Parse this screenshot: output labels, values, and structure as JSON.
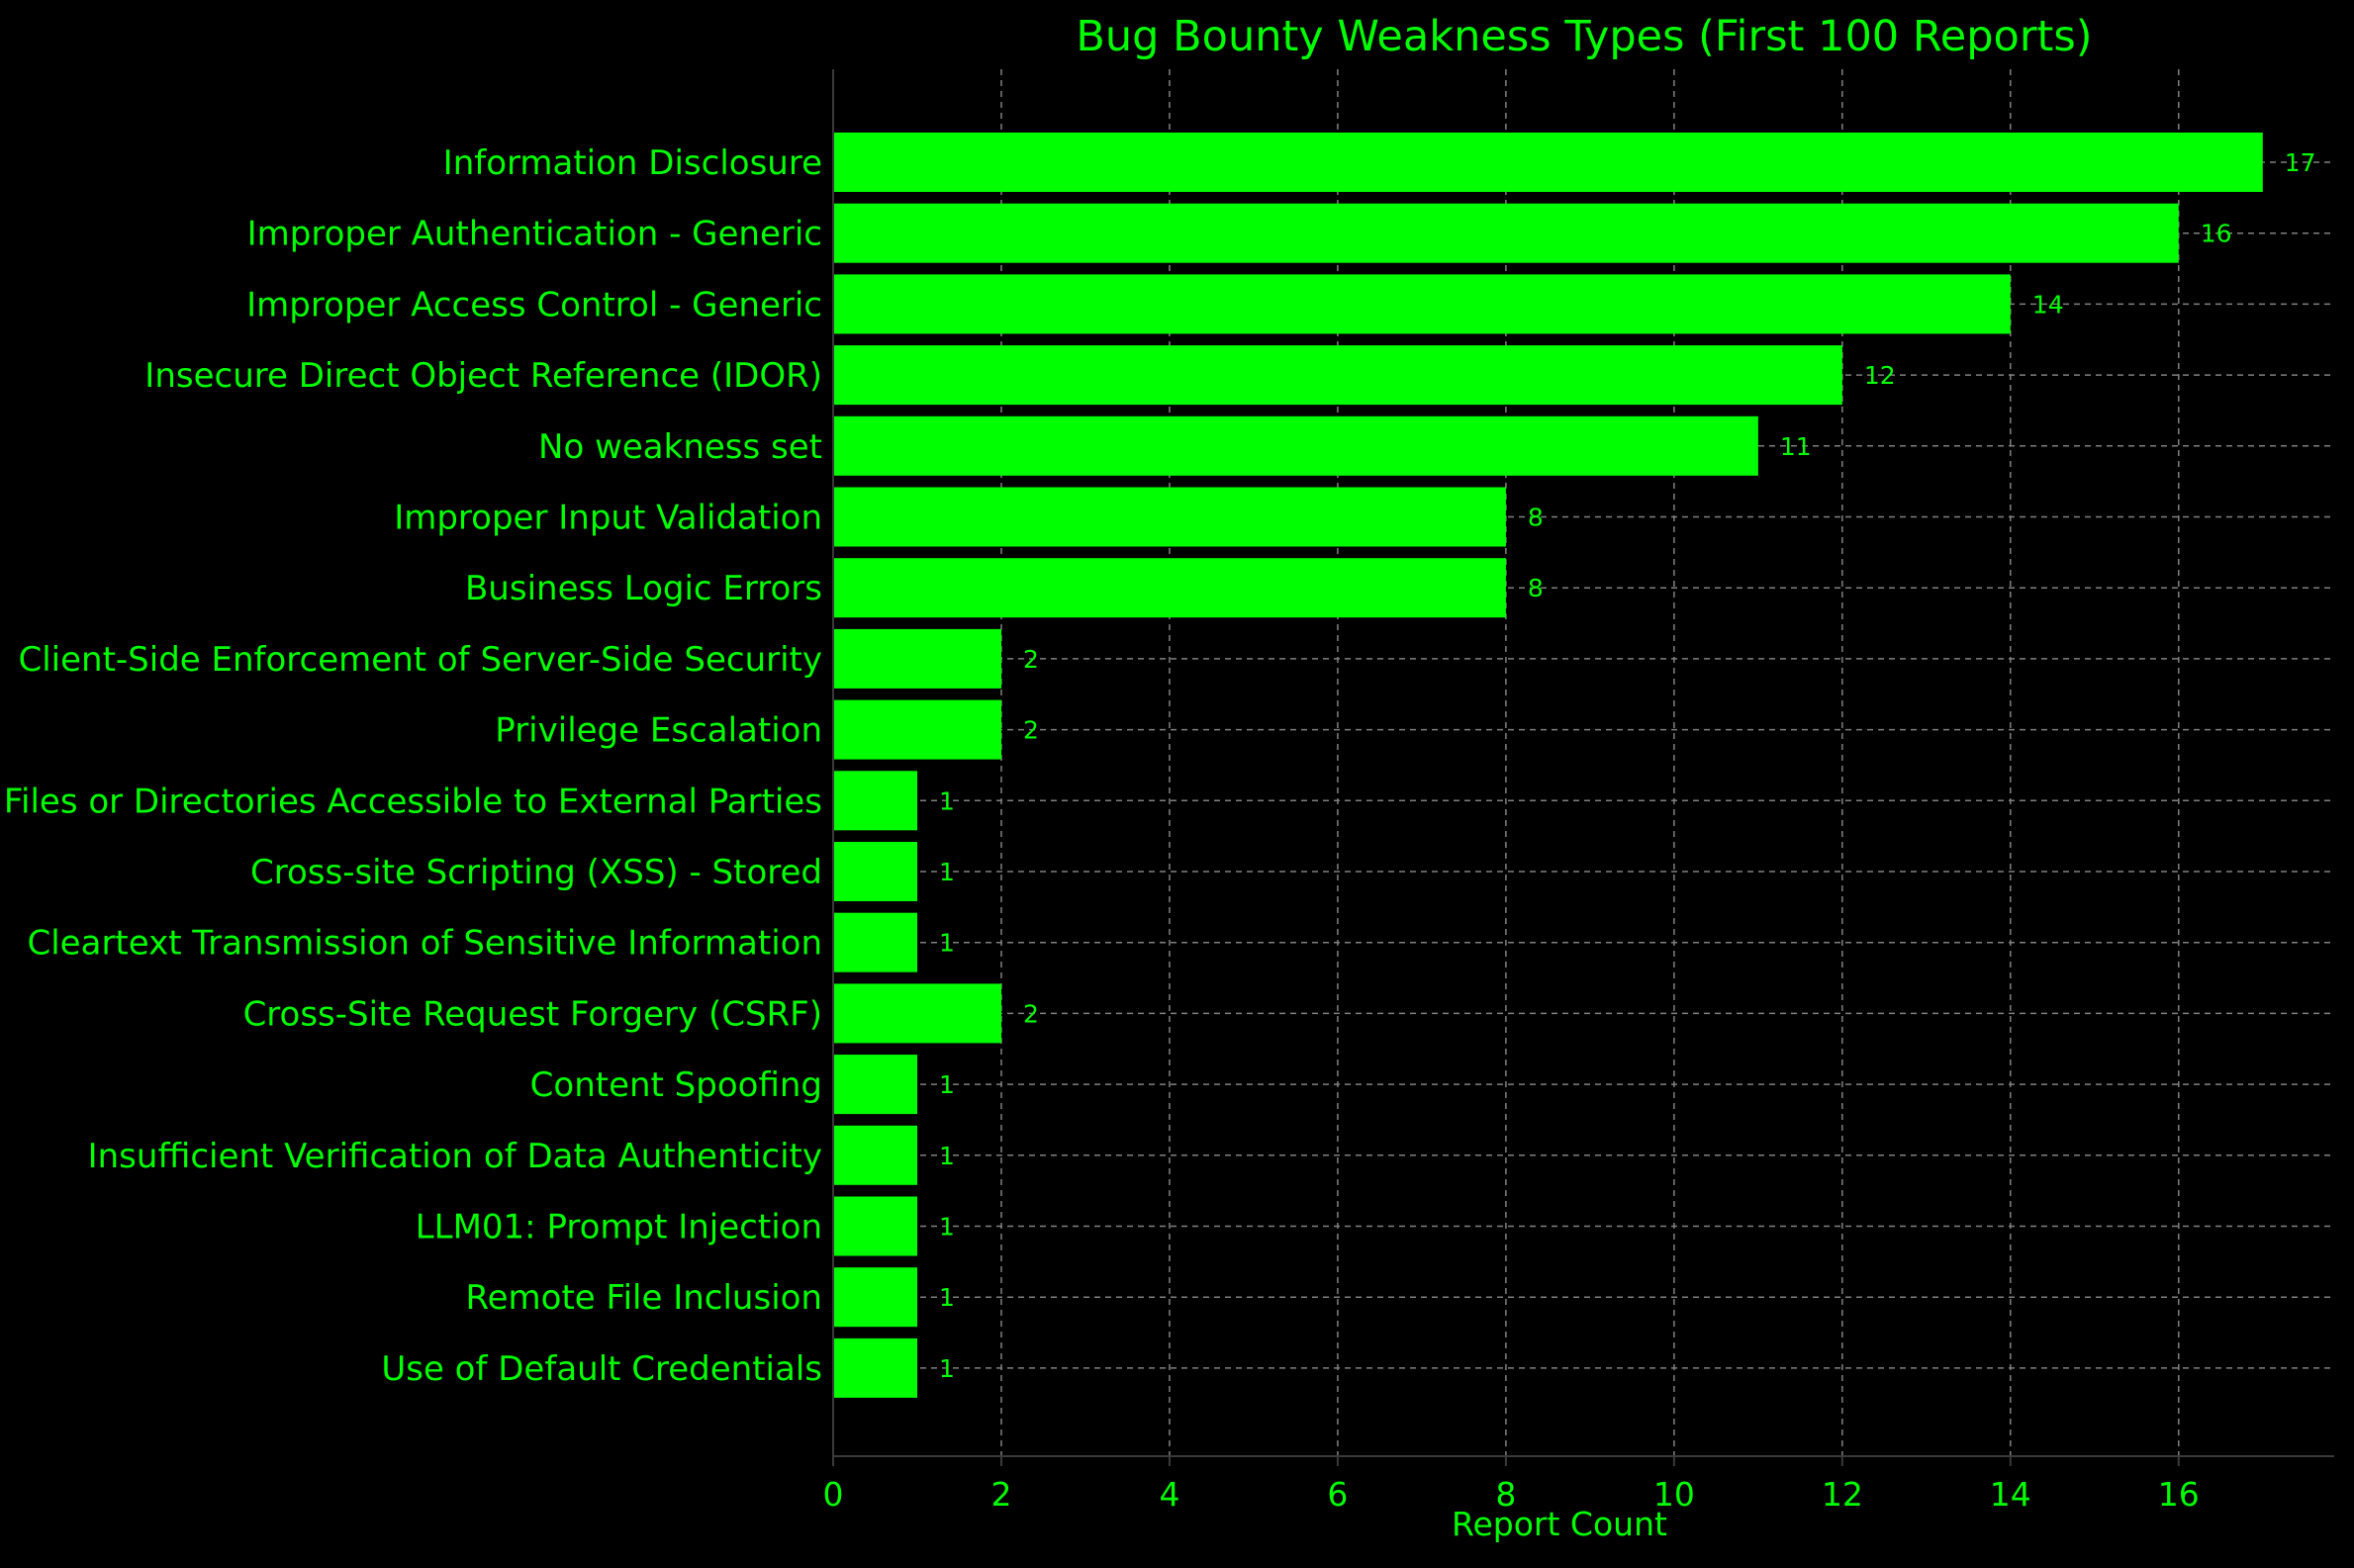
{
  "colors": {
    "background": "#000000",
    "bar": "#00ff00",
    "text": "#00ff00",
    "grid": "#808080",
    "axis": "#3a3a3a"
  },
  "chart_data": {
    "type": "bar",
    "orientation": "horizontal",
    "title": "Bug Bounty Weakness Types (First 100 Reports)",
    "xlabel": "Report Count",
    "ylabel": "",
    "xlim": [
      0,
      17.85
    ],
    "xticks": [
      0,
      2,
      4,
      6,
      8,
      10,
      12,
      14,
      16
    ],
    "grid": true,
    "categories": [
      "Information Disclosure",
      "Improper Authentication - Generic",
      "Improper Access Control - Generic",
      "Insecure Direct Object Reference (IDOR)",
      "No weakness set",
      "Improper Input Validation",
      "Business Logic Errors",
      "Client-Side Enforcement of Server-Side Security",
      "Privilege Escalation",
      "Files or Directories Accessible to External Parties",
      "Cross-site Scripting (XSS) - Stored",
      "Cleartext Transmission of Sensitive Information",
      "Cross-Site Request Forgery (CSRF)",
      "Content Spoofing",
      "Insufficient Verification of Data Authenticity",
      "LLM01: Prompt Injection",
      "Remote File Inclusion",
      "Use of Default Credentials"
    ],
    "values": [
      17,
      16,
      14,
      12,
      11,
      8,
      8,
      2,
      2,
      1,
      1,
      1,
      2,
      1,
      1,
      1,
      1,
      1
    ],
    "data_labels": [
      "17",
      "16",
      "14",
      "12",
      "11",
      "8",
      "8",
      "2",
      "2",
      "1",
      "1",
      "1",
      "2",
      "1",
      "1",
      "1",
      "1",
      "1"
    ]
  }
}
